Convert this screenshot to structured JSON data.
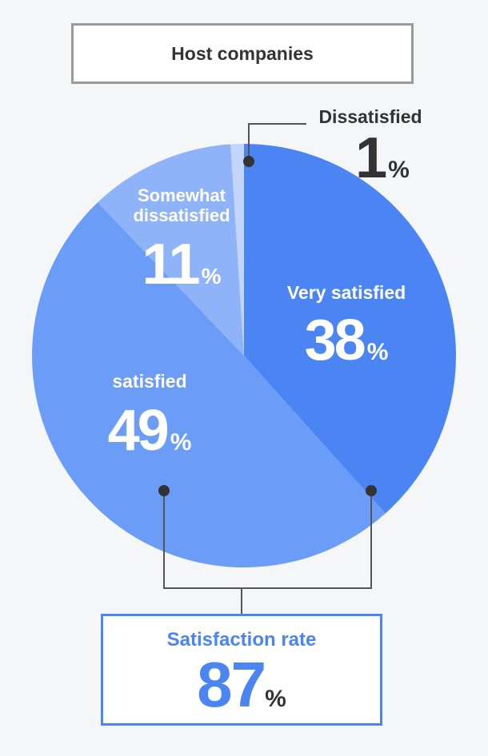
{
  "header": {
    "title": "Host companies"
  },
  "chart_data": {
    "type": "pie",
    "slices": [
      {
        "label": "Very satisfied",
        "value": 38,
        "color": "#4a85f3"
      },
      {
        "label": "satisfied",
        "value": 49,
        "color": "#6b9cf7"
      },
      {
        "label": "Somewhat dissatisfied",
        "value": 11,
        "color": "#8fb3f8"
      },
      {
        "label": "Dissatisfied",
        "value": 1,
        "color": "#c3d5fb"
      }
    ],
    "value_suffix": "%"
  },
  "summary": {
    "label": "Satisfaction rate",
    "value": "87",
    "suffix": "%"
  }
}
